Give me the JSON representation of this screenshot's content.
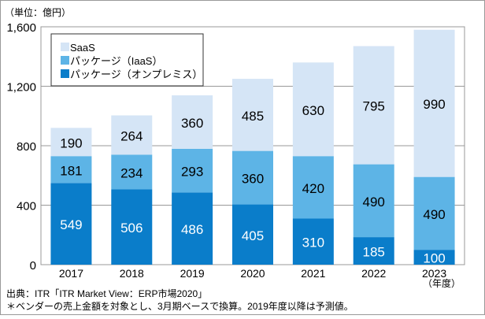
{
  "chart_data": {
    "type": "bar",
    "stacked": true,
    "unit_label": "（単位：億円）",
    "categories": [
      "2017",
      "2018",
      "2019",
      "2020",
      "2021",
      "2022",
      "2023"
    ],
    "x_unit": "（年度）",
    "ylim": [
      0,
      1600
    ],
    "yticks": [
      0,
      400,
      800,
      1200,
      1600
    ],
    "ytick_labels": [
      "0",
      "400",
      "800",
      "1,200",
      "1,600"
    ],
    "grid": true,
    "legend_position": "top-left",
    "series": [
      {
        "name": "パッケージ（オンプレミス）",
        "color": "#0a7dca",
        "label_color": "#ffffff",
        "values": [
          549,
          506,
          486,
          405,
          310,
          185,
          100
        ]
      },
      {
        "name": "パッケージ（IaaS）",
        "color": "#5db4e6",
        "label_color": "#000000",
        "values": [
          181,
          234,
          293,
          360,
          420,
          490,
          490
        ]
      },
      {
        "name": "SaaS",
        "color": "#d5e5f6",
        "label_color": "#000000",
        "values": [
          190,
          264,
          360,
          485,
          630,
          795,
          990
        ]
      }
    ],
    "legend_order": [
      2,
      1,
      0
    ]
  },
  "footer": {
    "source": "出典：ITR「ITR Market View：ERP市場2020」",
    "note": "＊ベンダーの売上金額を対象とし、3月期ベースで換算。2019年度以降は予測値。"
  }
}
